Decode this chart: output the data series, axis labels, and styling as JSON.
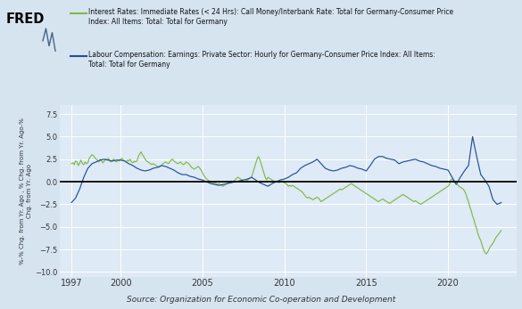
{
  "legend1_line1": "Interest Rates: Immediate Rates (< 24 Hrs): Call Money/Interbank Rate: Total for Germany-Consumer Price",
  "legend1_line2": "Index: All Items: Total: Total for Germany",
  "legend2_line1": "Labour Compensation: Earnings: Private Sector: Hourly for Germany-Consumer Price Index: All Items:",
  "legend2_line2": "Total: Total for Germany",
  "ylabel": "%-% Chg. from Yr. Ago , % Chg. from Yr. Ago-%\nChg. from Yr. Ago",
  "source": "Source: Organization for Economic Co-operation and Development",
  "ylim": [
    -10.5,
    8.5
  ],
  "yticks": [
    7.5,
    5.0,
    2.5,
    0.0,
    -2.5,
    -5.0,
    -7.5,
    -10.0
  ],
  "xlim": [
    1996.3,
    2024.2
  ],
  "xticks": [
    1997,
    2000,
    2005,
    2010,
    2015,
    2020
  ],
  "background_color": "#d6e4f0",
  "plot_background": "#deeaf5",
  "green_color": "#82b944",
  "blue_color": "#244e9c",
  "green_data": [
    [
      1997.0,
      2.0
    ],
    [
      1997.083,
      2.1
    ],
    [
      1997.167,
      1.9
    ],
    [
      1997.25,
      2.3
    ],
    [
      1997.333,
      2.2
    ],
    [
      1997.417,
      1.8
    ],
    [
      1997.5,
      2.1
    ],
    [
      1997.583,
      2.4
    ],
    [
      1997.667,
      2.0
    ],
    [
      1997.75,
      1.9
    ],
    [
      1997.833,
      2.2
    ],
    [
      1997.917,
      2.0
    ],
    [
      1998.0,
      2.1
    ],
    [
      1998.083,
      2.6
    ],
    [
      1998.167,
      2.8
    ],
    [
      1998.25,
      3.0
    ],
    [
      1998.333,
      2.9
    ],
    [
      1998.417,
      2.7
    ],
    [
      1998.5,
      2.5
    ],
    [
      1998.583,
      2.4
    ],
    [
      1998.667,
      2.2
    ],
    [
      1998.75,
      2.5
    ],
    [
      1998.833,
      2.3
    ],
    [
      1998.917,
      2.1
    ],
    [
      1999.0,
      2.3
    ],
    [
      1999.083,
      2.5
    ],
    [
      1999.167,
      2.4
    ],
    [
      1999.25,
      2.6
    ],
    [
      1999.333,
      2.3
    ],
    [
      1999.417,
      2.2
    ],
    [
      1999.5,
      2.4
    ],
    [
      1999.583,
      2.5
    ],
    [
      1999.667,
      2.3
    ],
    [
      1999.75,
      2.2
    ],
    [
      1999.833,
      2.4
    ],
    [
      1999.917,
      2.3
    ],
    [
      2000.0,
      2.5
    ],
    [
      2000.083,
      2.6
    ],
    [
      2000.167,
      2.4
    ],
    [
      2000.25,
      2.3
    ],
    [
      2000.333,
      2.2
    ],
    [
      2000.417,
      2.4
    ],
    [
      2000.5,
      2.3
    ],
    [
      2000.583,
      2.5
    ],
    [
      2000.667,
      2.2
    ],
    [
      2000.75,
      2.1
    ],
    [
      2000.833,
      2.3
    ],
    [
      2000.917,
      2.2
    ],
    [
      2001.0,
      2.3
    ],
    [
      2001.083,
      2.8
    ],
    [
      2001.167,
      3.1
    ],
    [
      2001.25,
      3.3
    ],
    [
      2001.333,
      3.0
    ],
    [
      2001.417,
      2.8
    ],
    [
      2001.5,
      2.5
    ],
    [
      2001.583,
      2.3
    ],
    [
      2001.667,
      2.2
    ],
    [
      2001.75,
      2.1
    ],
    [
      2001.833,
      2.0
    ],
    [
      2001.917,
      1.9
    ],
    [
      2002.0,
      2.0
    ],
    [
      2002.083,
      1.9
    ],
    [
      2002.167,
      1.8
    ],
    [
      2002.25,
      1.7
    ],
    [
      2002.333,
      1.6
    ],
    [
      2002.417,
      1.7
    ],
    [
      2002.5,
      1.8
    ],
    [
      2002.583,
      2.0
    ],
    [
      2002.667,
      2.1
    ],
    [
      2002.75,
      2.2
    ],
    [
      2002.833,
      2.1
    ],
    [
      2002.917,
      2.0
    ],
    [
      2003.0,
      2.2
    ],
    [
      2003.083,
      2.4
    ],
    [
      2003.167,
      2.5
    ],
    [
      2003.25,
      2.3
    ],
    [
      2003.333,
      2.2
    ],
    [
      2003.417,
      2.1
    ],
    [
      2003.5,
      2.0
    ],
    [
      2003.583,
      2.1
    ],
    [
      2003.667,
      2.2
    ],
    [
      2003.75,
      2.0
    ],
    [
      2003.833,
      1.9
    ],
    [
      2003.917,
      2.0
    ],
    [
      2004.0,
      2.2
    ],
    [
      2004.083,
      2.1
    ],
    [
      2004.167,
      2.0
    ],
    [
      2004.25,
      1.8
    ],
    [
      2004.333,
      1.6
    ],
    [
      2004.417,
      1.5
    ],
    [
      2004.5,
      1.4
    ],
    [
      2004.583,
      1.5
    ],
    [
      2004.667,
      1.6
    ],
    [
      2004.75,
      1.7
    ],
    [
      2004.833,
      1.5
    ],
    [
      2004.917,
      1.3
    ],
    [
      2005.0,
      1.0
    ],
    [
      2005.083,
      0.7
    ],
    [
      2005.167,
      0.5
    ],
    [
      2005.25,
      0.3
    ],
    [
      2005.333,
      0.2
    ],
    [
      2005.417,
      0.1
    ],
    [
      2005.5,
      0.0
    ],
    [
      2005.583,
      -0.1
    ],
    [
      2005.667,
      -0.2
    ],
    [
      2005.75,
      -0.1
    ],
    [
      2005.833,
      -0.2
    ],
    [
      2005.917,
      -0.3
    ],
    [
      2006.0,
      -0.2
    ],
    [
      2006.083,
      -0.3
    ],
    [
      2006.167,
      -0.4
    ],
    [
      2006.25,
      -0.5
    ],
    [
      2006.333,
      -0.4
    ],
    [
      2006.417,
      -0.3
    ],
    [
      2006.5,
      -0.2
    ],
    [
      2006.583,
      -0.1
    ],
    [
      2006.667,
      0.0
    ],
    [
      2006.75,
      0.1
    ],
    [
      2006.833,
      0.0
    ],
    [
      2006.917,
      0.1
    ],
    [
      2007.0,
      0.2
    ],
    [
      2007.083,
      0.4
    ],
    [
      2007.167,
      0.5
    ],
    [
      2007.25,
      0.4
    ],
    [
      2007.333,
      0.3
    ],
    [
      2007.417,
      0.2
    ],
    [
      2007.5,
      0.1
    ],
    [
      2007.583,
      0.0
    ],
    [
      2007.667,
      0.1
    ],
    [
      2007.75,
      0.2
    ],
    [
      2007.833,
      0.3
    ],
    [
      2007.917,
      0.4
    ],
    [
      2008.0,
      0.5
    ],
    [
      2008.083,
      1.0
    ],
    [
      2008.167,
      1.5
    ],
    [
      2008.25,
      2.0
    ],
    [
      2008.333,
      2.5
    ],
    [
      2008.417,
      2.8
    ],
    [
      2008.5,
      2.5
    ],
    [
      2008.583,
      2.0
    ],
    [
      2008.667,
      1.5
    ],
    [
      2008.75,
      1.0
    ],
    [
      2008.833,
      0.5
    ],
    [
      2008.917,
      0.2
    ],
    [
      2009.0,
      0.5
    ],
    [
      2009.083,
      0.4
    ],
    [
      2009.167,
      0.3
    ],
    [
      2009.25,
      0.2
    ],
    [
      2009.333,
      0.1
    ],
    [
      2009.417,
      0.0
    ],
    [
      2009.5,
      0.1
    ],
    [
      2009.583,
      0.0
    ],
    [
      2009.667,
      -0.1
    ],
    [
      2009.75,
      0.0
    ],
    [
      2009.833,
      0.1
    ],
    [
      2009.917,
      0.0
    ],
    [
      2010.0,
      -0.1
    ],
    [
      2010.083,
      -0.2
    ],
    [
      2010.167,
      -0.3
    ],
    [
      2010.25,
      -0.5
    ],
    [
      2010.333,
      -0.4
    ],
    [
      2010.417,
      -0.5
    ],
    [
      2010.5,
      -0.4
    ],
    [
      2010.583,
      -0.5
    ],
    [
      2010.667,
      -0.6
    ],
    [
      2010.75,
      -0.7
    ],
    [
      2010.833,
      -0.8
    ],
    [
      2010.917,
      -0.9
    ],
    [
      2011.0,
      -1.0
    ],
    [
      2011.083,
      -1.1
    ],
    [
      2011.167,
      -1.3
    ],
    [
      2011.25,
      -1.5
    ],
    [
      2011.333,
      -1.7
    ],
    [
      2011.417,
      -1.8
    ],
    [
      2011.5,
      -1.7
    ],
    [
      2011.583,
      -1.8
    ],
    [
      2011.667,
      -1.9
    ],
    [
      2011.75,
      -2.0
    ],
    [
      2011.833,
      -1.9
    ],
    [
      2011.917,
      -1.8
    ],
    [
      2012.0,
      -1.7
    ],
    [
      2012.083,
      -1.8
    ],
    [
      2012.167,
      -2.0
    ],
    [
      2012.25,
      -2.2
    ],
    [
      2012.333,
      -2.1
    ],
    [
      2012.417,
      -2.0
    ],
    [
      2012.5,
      -1.9
    ],
    [
      2012.583,
      -1.8
    ],
    [
      2012.667,
      -1.7
    ],
    [
      2012.75,
      -1.6
    ],
    [
      2012.833,
      -1.5
    ],
    [
      2012.917,
      -1.4
    ],
    [
      2013.0,
      -1.3
    ],
    [
      2013.083,
      -1.2
    ],
    [
      2013.167,
      -1.1
    ],
    [
      2013.25,
      -1.0
    ],
    [
      2013.333,
      -0.9
    ],
    [
      2013.417,
      -0.8
    ],
    [
      2013.5,
      -0.9
    ],
    [
      2013.583,
      -0.8
    ],
    [
      2013.667,
      -0.7
    ],
    [
      2013.75,
      -0.6
    ],
    [
      2013.833,
      -0.5
    ],
    [
      2013.917,
      -0.4
    ],
    [
      2014.0,
      -0.3
    ],
    [
      2014.083,
      -0.2
    ],
    [
      2014.167,
      -0.3
    ],
    [
      2014.25,
      -0.4
    ],
    [
      2014.333,
      -0.5
    ],
    [
      2014.417,
      -0.6
    ],
    [
      2014.5,
      -0.7
    ],
    [
      2014.583,
      -0.8
    ],
    [
      2014.667,
      -0.9
    ],
    [
      2014.75,
      -1.0
    ],
    [
      2014.833,
      -1.1
    ],
    [
      2014.917,
      -1.2
    ],
    [
      2015.0,
      -1.3
    ],
    [
      2015.083,
      -1.4
    ],
    [
      2015.167,
      -1.5
    ],
    [
      2015.25,
      -1.6
    ],
    [
      2015.333,
      -1.7
    ],
    [
      2015.417,
      -1.8
    ],
    [
      2015.5,
      -1.9
    ],
    [
      2015.583,
      -2.0
    ],
    [
      2015.667,
      -2.1
    ],
    [
      2015.75,
      -2.2
    ],
    [
      2015.833,
      -2.1
    ],
    [
      2015.917,
      -2.0
    ],
    [
      2016.0,
      -1.9
    ],
    [
      2016.083,
      -2.0
    ],
    [
      2016.167,
      -2.1
    ],
    [
      2016.25,
      -2.2
    ],
    [
      2016.333,
      -2.3
    ],
    [
      2016.417,
      -2.4
    ],
    [
      2016.5,
      -2.3
    ],
    [
      2016.583,
      -2.2
    ],
    [
      2016.667,
      -2.1
    ],
    [
      2016.75,
      -2.0
    ],
    [
      2016.833,
      -1.9
    ],
    [
      2016.917,
      -1.8
    ],
    [
      2017.0,
      -1.7
    ],
    [
      2017.083,
      -1.6
    ],
    [
      2017.167,
      -1.5
    ],
    [
      2017.25,
      -1.4
    ],
    [
      2017.333,
      -1.5
    ],
    [
      2017.417,
      -1.6
    ],
    [
      2017.5,
      -1.7
    ],
    [
      2017.583,
      -1.8
    ],
    [
      2017.667,
      -1.9
    ],
    [
      2017.75,
      -2.0
    ],
    [
      2017.833,
      -2.1
    ],
    [
      2017.917,
      -2.2
    ],
    [
      2018.0,
      -2.1
    ],
    [
      2018.083,
      -2.2
    ],
    [
      2018.167,
      -2.3
    ],
    [
      2018.25,
      -2.4
    ],
    [
      2018.333,
      -2.5
    ],
    [
      2018.417,
      -2.4
    ],
    [
      2018.5,
      -2.3
    ],
    [
      2018.583,
      -2.2
    ],
    [
      2018.667,
      -2.1
    ],
    [
      2018.75,
      -2.0
    ],
    [
      2018.833,
      -1.9
    ],
    [
      2018.917,
      -1.8
    ],
    [
      2019.0,
      -1.7
    ],
    [
      2019.083,
      -1.6
    ],
    [
      2019.167,
      -1.5
    ],
    [
      2019.25,
      -1.4
    ],
    [
      2019.333,
      -1.3
    ],
    [
      2019.417,
      -1.2
    ],
    [
      2019.5,
      -1.1
    ],
    [
      2019.583,
      -1.0
    ],
    [
      2019.667,
      -0.9
    ],
    [
      2019.75,
      -0.8
    ],
    [
      2019.833,
      -0.7
    ],
    [
      2019.917,
      -0.6
    ],
    [
      2020.0,
      -0.5
    ],
    [
      2020.083,
      -0.3
    ],
    [
      2020.167,
      0.2
    ],
    [
      2020.25,
      0.3
    ],
    [
      2020.333,
      0.1
    ],
    [
      2020.417,
      -0.1
    ],
    [
      2020.5,
      -0.2
    ],
    [
      2020.583,
      -0.3
    ],
    [
      2020.667,
      -0.5
    ],
    [
      2020.75,
      -0.6
    ],
    [
      2020.833,
      -0.7
    ],
    [
      2020.917,
      -0.8
    ],
    [
      2021.0,
      -1.0
    ],
    [
      2021.083,
      -1.3
    ],
    [
      2021.167,
      -1.8
    ],
    [
      2021.25,
      -2.2
    ],
    [
      2021.333,
      -2.8
    ],
    [
      2021.417,
      -3.2
    ],
    [
      2021.5,
      -3.8
    ],
    [
      2021.583,
      -4.2
    ],
    [
      2021.667,
      -4.8
    ],
    [
      2021.75,
      -5.2
    ],
    [
      2021.833,
      -5.8
    ],
    [
      2021.917,
      -6.2
    ],
    [
      2022.0,
      -6.5
    ],
    [
      2022.083,
      -7.0
    ],
    [
      2022.167,
      -7.5
    ],
    [
      2022.25,
      -7.8
    ],
    [
      2022.333,
      -8.0
    ],
    [
      2022.417,
      -7.8
    ],
    [
      2022.5,
      -7.5
    ],
    [
      2022.583,
      -7.2
    ],
    [
      2022.667,
      -7.0
    ],
    [
      2022.75,
      -6.8
    ],
    [
      2022.833,
      -6.5
    ],
    [
      2022.917,
      -6.2
    ],
    [
      2023.0,
      -6.0
    ],
    [
      2023.083,
      -5.8
    ],
    [
      2023.167,
      -5.6
    ],
    [
      2023.25,
      -5.4
    ]
  ],
  "blue_data": [
    [
      1997.0,
      -2.3
    ],
    [
      1997.25,
      -1.8
    ],
    [
      1997.5,
      -0.8
    ],
    [
      1997.75,
      0.5
    ],
    [
      1998.0,
      1.5
    ],
    [
      1998.25,
      2.0
    ],
    [
      1998.5,
      2.2
    ],
    [
      1998.75,
      2.4
    ],
    [
      1999.0,
      2.5
    ],
    [
      1999.25,
      2.4
    ],
    [
      1999.5,
      2.3
    ],
    [
      1999.75,
      2.4
    ],
    [
      2000.0,
      2.4
    ],
    [
      2000.25,
      2.3
    ],
    [
      2000.5,
      2.0
    ],
    [
      2000.75,
      1.8
    ],
    [
      2001.0,
      1.5
    ],
    [
      2001.25,
      1.3
    ],
    [
      2001.5,
      1.2
    ],
    [
      2001.75,
      1.3
    ],
    [
      2002.0,
      1.5
    ],
    [
      2002.25,
      1.6
    ],
    [
      2002.5,
      1.8
    ],
    [
      2002.75,
      1.7
    ],
    [
      2003.0,
      1.5
    ],
    [
      2003.25,
      1.3
    ],
    [
      2003.5,
      1.0
    ],
    [
      2003.75,
      0.8
    ],
    [
      2004.0,
      0.8
    ],
    [
      2004.25,
      0.6
    ],
    [
      2004.5,
      0.5
    ],
    [
      2004.75,
      0.3
    ],
    [
      2005.0,
      0.2
    ],
    [
      2005.25,
      0.0
    ],
    [
      2005.5,
      -0.2
    ],
    [
      2005.75,
      -0.3
    ],
    [
      2006.0,
      -0.4
    ],
    [
      2006.25,
      -0.3
    ],
    [
      2006.5,
      -0.2
    ],
    [
      2006.75,
      -0.1
    ],
    [
      2007.0,
      0.0
    ],
    [
      2007.25,
      0.1
    ],
    [
      2007.5,
      0.2
    ],
    [
      2007.75,
      0.3
    ],
    [
      2008.0,
      0.5
    ],
    [
      2008.25,
      0.2
    ],
    [
      2008.5,
      -0.1
    ],
    [
      2008.75,
      -0.3
    ],
    [
      2009.0,
      -0.5
    ],
    [
      2009.25,
      -0.2
    ],
    [
      2009.5,
      0.0
    ],
    [
      2009.75,
      0.2
    ],
    [
      2010.0,
      0.3
    ],
    [
      2010.25,
      0.5
    ],
    [
      2010.5,
      0.8
    ],
    [
      2010.75,
      1.0
    ],
    [
      2011.0,
      1.5
    ],
    [
      2011.25,
      1.8
    ],
    [
      2011.5,
      2.0
    ],
    [
      2011.75,
      2.2
    ],
    [
      2012.0,
      2.5
    ],
    [
      2012.25,
      2.0
    ],
    [
      2012.5,
      1.5
    ],
    [
      2012.75,
      1.3
    ],
    [
      2013.0,
      1.2
    ],
    [
      2013.25,
      1.3
    ],
    [
      2013.5,
      1.5
    ],
    [
      2013.75,
      1.6
    ],
    [
      2014.0,
      1.8
    ],
    [
      2014.25,
      1.7
    ],
    [
      2014.5,
      1.5
    ],
    [
      2014.75,
      1.4
    ],
    [
      2015.0,
      1.2
    ],
    [
      2015.25,
      1.8
    ],
    [
      2015.5,
      2.5
    ],
    [
      2015.75,
      2.8
    ],
    [
      2016.0,
      2.8
    ],
    [
      2016.25,
      2.6
    ],
    [
      2016.5,
      2.5
    ],
    [
      2016.75,
      2.4
    ],
    [
      2017.0,
      2.0
    ],
    [
      2017.25,
      2.2
    ],
    [
      2017.5,
      2.3
    ],
    [
      2017.75,
      2.4
    ],
    [
      2018.0,
      2.5
    ],
    [
      2018.25,
      2.3
    ],
    [
      2018.5,
      2.2
    ],
    [
      2018.75,
      2.0
    ],
    [
      2019.0,
      1.8
    ],
    [
      2019.25,
      1.7
    ],
    [
      2019.5,
      1.5
    ],
    [
      2019.75,
      1.4
    ],
    [
      2020.0,
      1.3
    ],
    [
      2020.25,
      0.5
    ],
    [
      2020.5,
      -0.3
    ],
    [
      2020.75,
      0.5
    ],
    [
      2021.0,
      1.2
    ],
    [
      2021.25,
      1.8
    ],
    [
      2021.5,
      5.0
    ],
    [
      2021.75,
      2.8
    ],
    [
      2022.0,
      0.8
    ],
    [
      2022.25,
      0.2
    ],
    [
      2022.5,
      -0.5
    ],
    [
      2022.75,
      -2.0
    ],
    [
      2023.0,
      -2.5
    ],
    [
      2023.25,
      -2.3
    ]
  ]
}
